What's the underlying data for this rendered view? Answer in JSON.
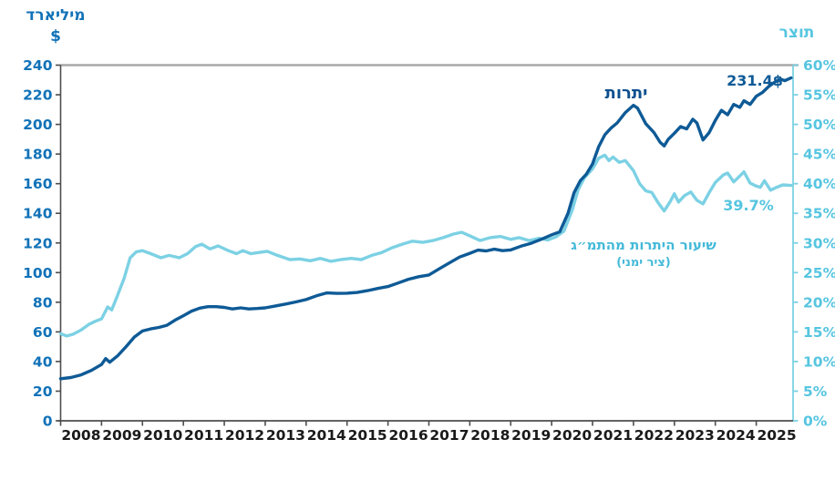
{
  "chart_data": {
    "type": "line",
    "left_axis": {
      "title_line1": "מיליארד",
      "title_line2": "$",
      "ticks": [
        0,
        20,
        40,
        60,
        80,
        100,
        120,
        140,
        160,
        180,
        200,
        220,
        240
      ],
      "range": [
        0,
        240
      ],
      "color": "#1172b8"
    },
    "right_axis": {
      "title": "תוצר",
      "ticks": [
        0,
        5,
        10,
        15,
        20,
        25,
        30,
        35,
        40,
        45,
        50,
        55,
        60
      ],
      "suffix": "%",
      "range": [
        0,
        60
      ],
      "color": "#56c5e0",
      "line_color": "#7cd1e4"
    },
    "x_axis": {
      "years": [
        2008,
        2009,
        2010,
        2011,
        2012,
        2013,
        2014,
        2015,
        2016,
        2017,
        2018,
        2019,
        2020,
        2021,
        2022,
        2023,
        2024,
        2025
      ],
      "color": "#1a1a1a",
      "axis_color": "#4d4d4d",
      "top_border_color": "#a8a8a8"
    },
    "series": [
      {
        "name": "שיעור היתרות מהתמ״ג",
        "name_sub": "(ציר ימני)",
        "axis": "right",
        "color": "#7cd1e4",
        "label_color": "#43b9d9",
        "end_label": "39.7%",
        "points": [
          [
            2008.0,
            14.7
          ],
          [
            2008.15,
            14.3
          ],
          [
            2008.3,
            14.6
          ],
          [
            2008.5,
            15.3
          ],
          [
            2008.7,
            16.3
          ],
          [
            2008.85,
            16.8
          ],
          [
            2009.0,
            17.2
          ],
          [
            2009.15,
            19.2
          ],
          [
            2009.25,
            18.7
          ],
          [
            2009.4,
            21.3
          ],
          [
            2009.55,
            24.0
          ],
          [
            2009.7,
            27.5
          ],
          [
            2009.85,
            28.5
          ],
          [
            2010.0,
            28.7
          ],
          [
            2010.2,
            28.2
          ],
          [
            2010.45,
            27.5
          ],
          [
            2010.65,
            27.9
          ],
          [
            2010.9,
            27.5
          ],
          [
            2011.1,
            28.2
          ],
          [
            2011.3,
            29.4
          ],
          [
            2011.45,
            29.8
          ],
          [
            2011.65,
            29.0
          ],
          [
            2011.85,
            29.5
          ],
          [
            2012.1,
            28.7
          ],
          [
            2012.3,
            28.2
          ],
          [
            2012.45,
            28.7
          ],
          [
            2012.65,
            28.2
          ],
          [
            2012.85,
            28.4
          ],
          [
            2013.05,
            28.6
          ],
          [
            2013.3,
            27.9
          ],
          [
            2013.6,
            27.2
          ],
          [
            2013.85,
            27.3
          ],
          [
            2014.1,
            27.0
          ],
          [
            2014.35,
            27.4
          ],
          [
            2014.6,
            26.9
          ],
          [
            2014.85,
            27.2
          ],
          [
            2015.1,
            27.4
          ],
          [
            2015.35,
            27.2
          ],
          [
            2015.6,
            27.9
          ],
          [
            2015.85,
            28.4
          ],
          [
            2016.1,
            29.2
          ],
          [
            2016.35,
            29.8
          ],
          [
            2016.6,
            30.3
          ],
          [
            2016.85,
            30.1
          ],
          [
            2017.1,
            30.4
          ],
          [
            2017.35,
            30.9
          ],
          [
            2017.6,
            31.5
          ],
          [
            2017.8,
            31.8
          ],
          [
            2018.0,
            31.2
          ],
          [
            2018.25,
            30.4
          ],
          [
            2018.5,
            30.9
          ],
          [
            2018.75,
            31.1
          ],
          [
            2019.0,
            30.6
          ],
          [
            2019.2,
            30.9
          ],
          [
            2019.45,
            30.4
          ],
          [
            2019.7,
            30.8
          ],
          [
            2019.9,
            30.5
          ],
          [
            2020.1,
            31.0
          ],
          [
            2020.3,
            32.0
          ],
          [
            2020.5,
            35.5
          ],
          [
            2020.65,
            39.0
          ],
          [
            2020.8,
            41.0
          ],
          [
            2021.0,
            42.5
          ],
          [
            2021.15,
            44.3
          ],
          [
            2021.3,
            44.8
          ],
          [
            2021.4,
            43.9
          ],
          [
            2021.5,
            44.5
          ],
          [
            2021.65,
            43.6
          ],
          [
            2021.8,
            43.9
          ],
          [
            2022.0,
            42.2
          ],
          [
            2022.15,
            40.0
          ],
          [
            2022.3,
            38.8
          ],
          [
            2022.45,
            38.5
          ],
          [
            2022.6,
            36.8
          ],
          [
            2022.75,
            35.4
          ],
          [
            2022.9,
            37.0
          ],
          [
            2023.0,
            38.3
          ],
          [
            2023.1,
            36.9
          ],
          [
            2023.25,
            38.0
          ],
          [
            2023.4,
            38.6
          ],
          [
            2023.55,
            37.2
          ],
          [
            2023.7,
            36.6
          ],
          [
            2023.85,
            38.5
          ],
          [
            2024.0,
            40.2
          ],
          [
            2024.2,
            41.5
          ],
          [
            2024.3,
            41.8
          ],
          [
            2024.45,
            40.3
          ],
          [
            2024.6,
            41.3
          ],
          [
            2024.7,
            42.0
          ],
          [
            2024.85,
            40.1
          ],
          [
            2025.0,
            39.6
          ],
          [
            2025.1,
            39.4
          ],
          [
            2025.2,
            40.5
          ],
          [
            2025.35,
            38.9
          ],
          [
            2025.5,
            39.4
          ],
          [
            2025.65,
            39.8
          ],
          [
            2025.85,
            39.7
          ]
        ]
      },
      {
        "name": "יתרות",
        "axis": "left",
        "color": "#0e5a96",
        "label_color": "#0c4f8e",
        "end_label": "231.4$",
        "points": [
          [
            2008.0,
            28.4
          ],
          [
            2008.25,
            29.2
          ],
          [
            2008.5,
            31.0
          ],
          [
            2008.75,
            34.0
          ],
          [
            2009.0,
            38.0
          ],
          [
            2009.1,
            42.0
          ],
          [
            2009.2,
            39.5
          ],
          [
            2009.4,
            44.0
          ],
          [
            2009.6,
            50.0
          ],
          [
            2009.8,
            56.5
          ],
          [
            2010.0,
            60.6
          ],
          [
            2010.2,
            62.0
          ],
          [
            2010.4,
            63.0
          ],
          [
            2010.6,
            64.5
          ],
          [
            2010.8,
            68.0
          ],
          [
            2011.0,
            70.9
          ],
          [
            2011.2,
            74.0
          ],
          [
            2011.4,
            76.0
          ],
          [
            2011.6,
            77.0
          ],
          [
            2011.8,
            77.0
          ],
          [
            2012.0,
            76.5
          ],
          [
            2012.2,
            75.5
          ],
          [
            2012.4,
            76.2
          ],
          [
            2012.6,
            75.5
          ],
          [
            2012.8,
            75.8
          ],
          [
            2013.0,
            76.2
          ],
          [
            2013.25,
            77.5
          ],
          [
            2013.5,
            78.8
          ],
          [
            2013.75,
            80.2
          ],
          [
            2014.0,
            81.8
          ],
          [
            2014.25,
            84.3
          ],
          [
            2014.5,
            86.3
          ],
          [
            2014.75,
            86.0
          ],
          [
            2015.0,
            86.1
          ],
          [
            2015.25,
            86.6
          ],
          [
            2015.5,
            87.8
          ],
          [
            2015.75,
            89.3
          ],
          [
            2016.0,
            90.6
          ],
          [
            2016.25,
            93.0
          ],
          [
            2016.5,
            95.5
          ],
          [
            2016.75,
            97.2
          ],
          [
            2017.0,
            98.4
          ],
          [
            2017.25,
            102.5
          ],
          [
            2017.5,
            106.5
          ],
          [
            2017.75,
            110.5
          ],
          [
            2018.0,
            113.0
          ],
          [
            2018.2,
            115.2
          ],
          [
            2018.4,
            114.6
          ],
          [
            2018.6,
            115.8
          ],
          [
            2018.8,
            114.8
          ],
          [
            2019.0,
            115.3
          ],
          [
            2019.25,
            117.8
          ],
          [
            2019.5,
            119.8
          ],
          [
            2019.75,
            122.5
          ],
          [
            2020.0,
            125.5
          ],
          [
            2020.2,
            127.5
          ],
          [
            2020.4,
            140.0
          ],
          [
            2020.55,
            154.0
          ],
          [
            2020.7,
            162.0
          ],
          [
            2020.85,
            166.5
          ],
          [
            2021.0,
            173.3
          ],
          [
            2021.15,
            185.0
          ],
          [
            2021.3,
            193.0
          ],
          [
            2021.45,
            197.5
          ],
          [
            2021.6,
            201.0
          ],
          [
            2021.8,
            208.0
          ],
          [
            2022.0,
            212.9
          ],
          [
            2022.1,
            211.0
          ],
          [
            2022.3,
            200.5
          ],
          [
            2022.5,
            194.5
          ],
          [
            2022.65,
            188.0
          ],
          [
            2022.75,
            185.5
          ],
          [
            2022.85,
            190.0
          ],
          [
            2023.0,
            194.0
          ],
          [
            2023.15,
            198.5
          ],
          [
            2023.3,
            197.0
          ],
          [
            2023.45,
            203.5
          ],
          [
            2023.55,
            201.0
          ],
          [
            2023.7,
            189.5
          ],
          [
            2023.85,
            194.5
          ],
          [
            2024.0,
            202.7
          ],
          [
            2024.15,
            209.5
          ],
          [
            2024.3,
            206.5
          ],
          [
            2024.45,
            213.5
          ],
          [
            2024.6,
            211.5
          ],
          [
            2024.7,
            216.0
          ],
          [
            2024.85,
            213.5
          ],
          [
            2025.0,
            219.0
          ],
          [
            2025.15,
            221.5
          ],
          [
            2025.3,
            225.5
          ],
          [
            2025.45,
            228.5
          ],
          [
            2025.6,
            230.5
          ],
          [
            2025.7,
            229.5
          ],
          [
            2025.85,
            231.4
          ]
        ]
      }
    ],
    "layout_hints": {
      "grid": false,
      "x_range": [
        2008.0,
        2025.9
      ],
      "legend": "inline-annotations"
    }
  }
}
